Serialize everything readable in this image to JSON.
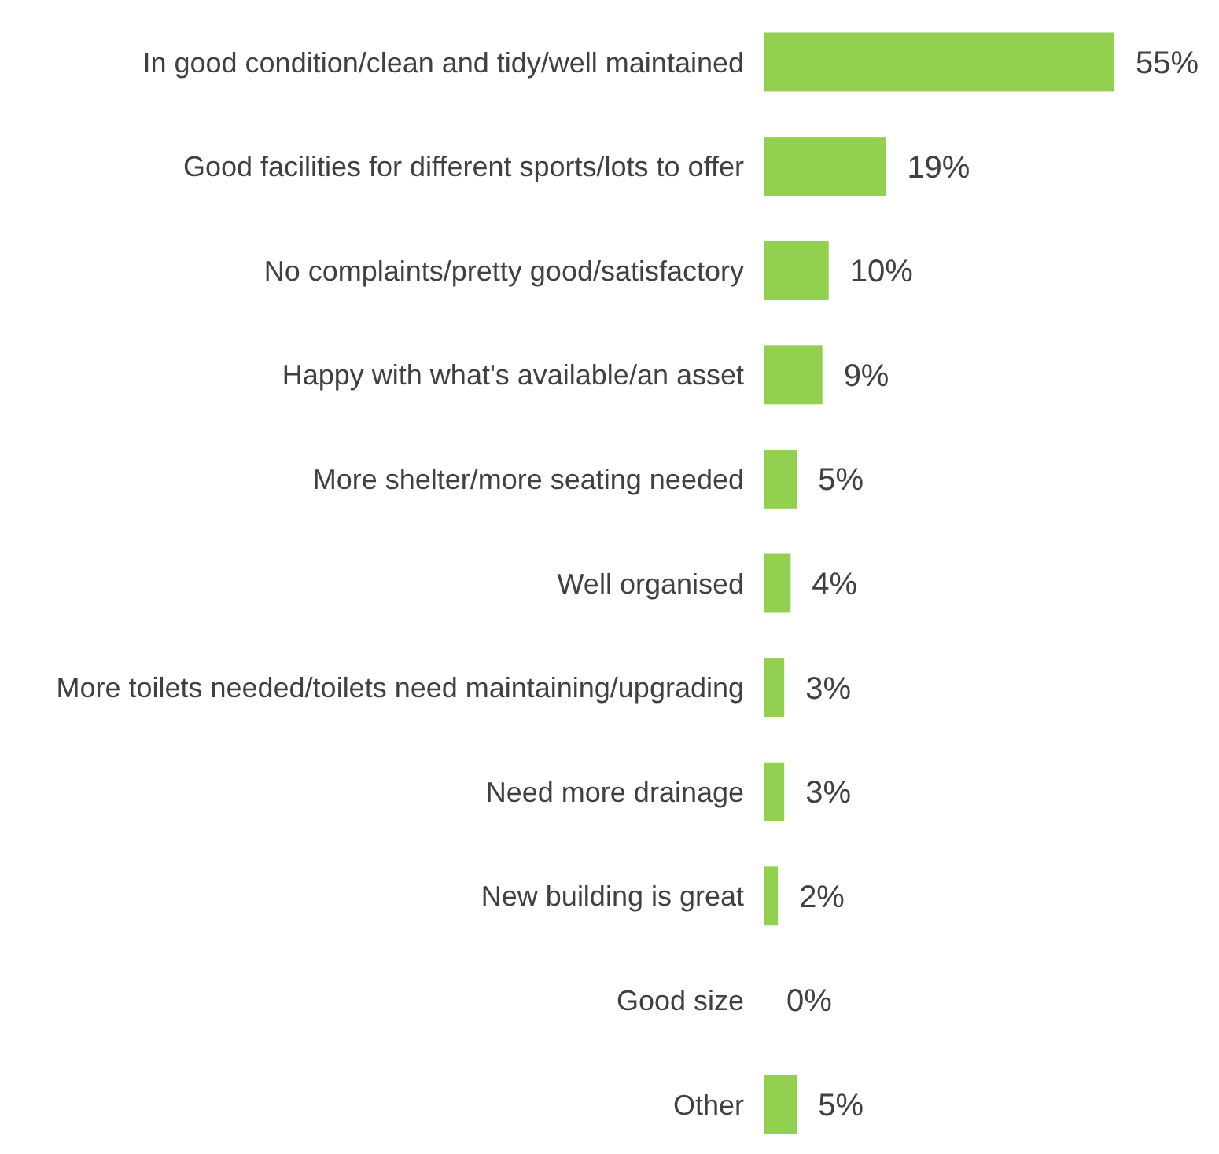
{
  "chart_data": {
    "type": "bar",
    "orientation": "horizontal",
    "categories": [
      "In good condition/clean and tidy/well maintained",
      "Good facilities for different sports/lots to offer",
      "No complaints/pretty good/satisfactory",
      "Happy with what's available/an asset",
      "More shelter/more seating needed",
      "Well organised",
      "More toilets needed/toilets need maintaining/upgrading",
      "Need more drainage",
      "New building is great",
      "Good size",
      "Other"
    ],
    "values": [
      55,
      19,
      10,
      9,
      5,
      4,
      3,
      3,
      2,
      0,
      5
    ],
    "value_labels": [
      "55%",
      "19%",
      "10%",
      "9%",
      "5%",
      "4%",
      "3%",
      "3%",
      "2%",
      "0%",
      "5%"
    ],
    "color": "#92d050"
  }
}
